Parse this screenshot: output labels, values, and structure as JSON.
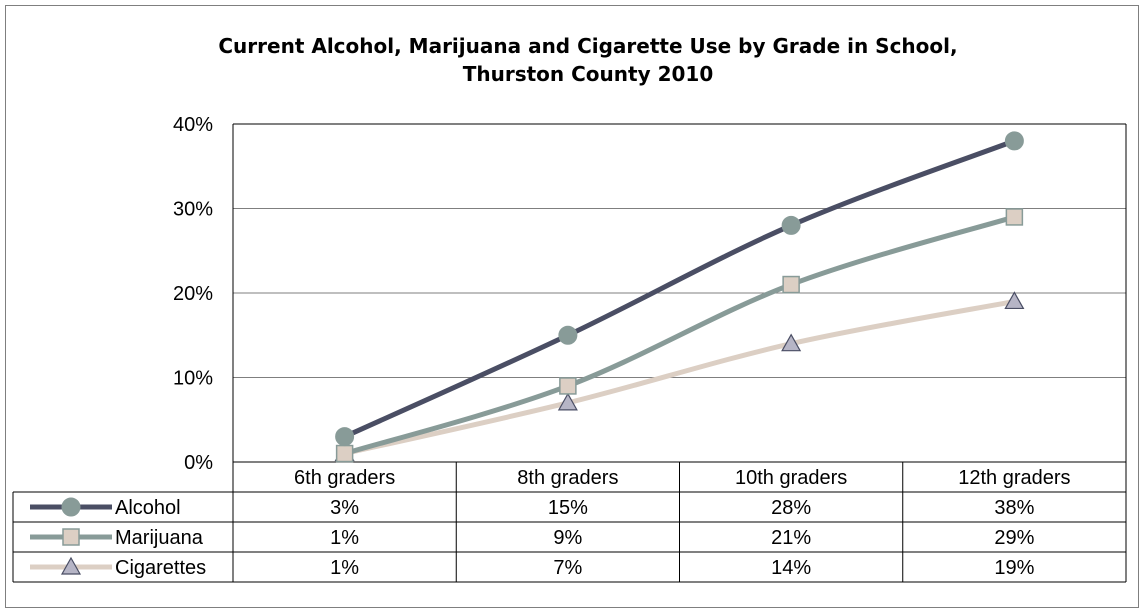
{
  "chart_data": {
    "type": "line",
    "title": "Current Alcohol, Marijuana and Cigarette Use by Grade in School,",
    "subtitle": "Thurston County 2010",
    "categories": [
      "6th graders",
      "8th graders",
      "10th graders",
      "12th graders"
    ],
    "series": [
      {
        "name": "Alcohol",
        "values": [
          3,
          15,
          28,
          38
        ],
        "labels": [
          "3%",
          "15%",
          "28%",
          "38%"
        ],
        "color": "#4a4e64",
        "marker": "circle"
      },
      {
        "name": "Marijuana",
        "values": [
          1,
          9,
          21,
          29
        ],
        "labels": [
          "1%",
          "9%",
          "21%",
          "29%"
        ],
        "color": "#889b98",
        "marker": "square"
      },
      {
        "name": "Cigarettes",
        "values": [
          1,
          7,
          14,
          19
        ],
        "labels": [
          "1%",
          "7%",
          "14%",
          "19%"
        ],
        "color": "#dccfc4",
        "marker": "triangle"
      }
    ],
    "y_ticks": [
      "0%",
      "10%",
      "20%",
      "30%",
      "40%"
    ],
    "ylim": [
      0,
      40
    ],
    "y_unit": "%",
    "grid": true,
    "legend": "data-table",
    "smoothed": true
  }
}
